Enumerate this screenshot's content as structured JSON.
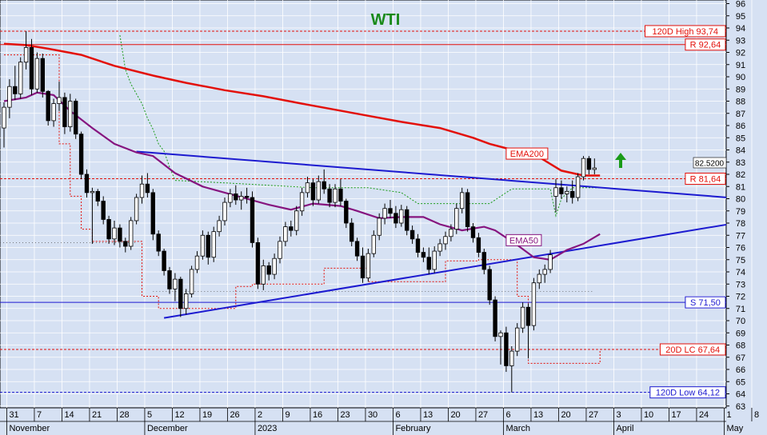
{
  "chart_data": {
    "type": "candlestick",
    "title": "WTI",
    "title_color": "#1a8a1a",
    "background": "#d6e1f3",
    "ylim": [
      62.5,
      96.8
    ],
    "yticks": [
      63,
      64,
      65,
      66,
      67,
      68,
      69,
      70,
      71,
      72,
      73,
      74,
      75,
      76,
      77,
      78,
      79,
      80,
      81,
      82,
      83,
      84,
      85,
      86,
      87,
      88,
      89,
      90,
      91,
      92,
      93,
      94,
      95,
      96
    ],
    "x_tick_labels": [
      "31",
      "7",
      "14",
      "21",
      "28",
      "5",
      "12",
      "19",
      "26",
      "2",
      "9",
      "16",
      "23",
      "30",
      "6",
      "13",
      "20",
      "27",
      "6",
      "13",
      "20",
      "27",
      "3",
      "10",
      "17",
      "24",
      "1",
      "8",
      "15"
    ],
    "x_period_labels": [
      "November",
      "December",
      "2023",
      "February",
      "March",
      "April",
      "May"
    ],
    "last_price": "82.5200",
    "candles": [
      {
        "o": 85.8,
        "h": 87.9,
        "l": 84.2,
        "c": 87.5
      },
      {
        "o": 87.5,
        "h": 89.8,
        "l": 86.6,
        "c": 89.2
      },
      {
        "o": 89.2,
        "h": 90.9,
        "l": 88.1,
        "c": 88.6
      },
      {
        "o": 88.6,
        "h": 91.6,
        "l": 88.2,
        "c": 91.2
      },
      {
        "o": 91.2,
        "h": 93.74,
        "l": 90.6,
        "c": 92.4
      },
      {
        "o": 92.4,
        "h": 93.1,
        "l": 88.5,
        "c": 89.0
      },
      {
        "o": 89.0,
        "h": 92.0,
        "l": 88.7,
        "c": 91.5
      },
      {
        "o": 91.5,
        "h": 91.9,
        "l": 88.3,
        "c": 88.8
      },
      {
        "o": 88.8,
        "h": 88.9,
        "l": 86.0,
        "c": 86.4
      },
      {
        "o": 86.4,
        "h": 88.2,
        "l": 85.9,
        "c": 87.8
      },
      {
        "o": 87.8,
        "h": 89.6,
        "l": 87.2,
        "c": 88.3
      },
      {
        "o": 88.3,
        "h": 88.7,
        "l": 85.3,
        "c": 85.9
      },
      {
        "o": 85.9,
        "h": 88.6,
        "l": 85.5,
        "c": 88.0
      },
      {
        "o": 88.0,
        "h": 88.2,
        "l": 84.9,
        "c": 85.3
      },
      {
        "o": 85.3,
        "h": 85.5,
        "l": 81.6,
        "c": 82.0
      },
      {
        "o": 82.0,
        "h": 82.4,
        "l": 80.1,
        "c": 80.5
      },
      {
        "o": 80.5,
        "h": 80.9,
        "l": 76.3,
        "c": 80.6
      },
      {
        "o": 80.6,
        "h": 80.8,
        "l": 79.4,
        "c": 79.8
      },
      {
        "o": 79.8,
        "h": 80.2,
        "l": 77.9,
        "c": 78.3
      },
      {
        "o": 78.3,
        "h": 78.6,
        "l": 76.3,
        "c": 76.7
      },
      {
        "o": 76.7,
        "h": 78.2,
        "l": 76.2,
        "c": 77.6
      },
      {
        "o": 77.6,
        "h": 77.9,
        "l": 76.0,
        "c": 76.5
      },
      {
        "o": 76.5,
        "h": 76.8,
        "l": 75.6,
        "c": 76.1
      },
      {
        "o": 76.1,
        "h": 78.5,
        "l": 75.8,
        "c": 78.2
      },
      {
        "o": 78.2,
        "h": 80.4,
        "l": 77.9,
        "c": 80.1
      },
      {
        "o": 80.1,
        "h": 81.9,
        "l": 79.6,
        "c": 81.2
      },
      {
        "o": 81.2,
        "h": 82.1,
        "l": 80.1,
        "c": 80.5
      },
      {
        "o": 80.5,
        "h": 80.8,
        "l": 76.6,
        "c": 77.1
      },
      {
        "o": 77.1,
        "h": 77.4,
        "l": 75.3,
        "c": 75.7
      },
      {
        "o": 75.7,
        "h": 75.9,
        "l": 73.7,
        "c": 74.1
      },
      {
        "o": 74.1,
        "h": 74.4,
        "l": 72.2,
        "c": 72.6
      },
      {
        "o": 72.6,
        "h": 73.9,
        "l": 71.6,
        "c": 73.4
      },
      {
        "o": 73.4,
        "h": 73.6,
        "l": 70.3,
        "c": 71.0
      },
      {
        "o": 71.0,
        "h": 72.6,
        "l": 70.5,
        "c": 72.2
      },
      {
        "o": 72.2,
        "h": 74.5,
        "l": 71.9,
        "c": 74.2
      },
      {
        "o": 74.2,
        "h": 75.7,
        "l": 73.9,
        "c": 75.3
      },
      {
        "o": 75.3,
        "h": 77.4,
        "l": 75.0,
        "c": 77.0
      },
      {
        "o": 77.0,
        "h": 77.3,
        "l": 74.6,
        "c": 75.2
      },
      {
        "o": 75.2,
        "h": 77.7,
        "l": 74.8,
        "c": 77.3
      },
      {
        "o": 77.3,
        "h": 78.6,
        "l": 76.9,
        "c": 78.2
      },
      {
        "o": 78.2,
        "h": 80.1,
        "l": 77.8,
        "c": 79.7
      },
      {
        "o": 79.7,
        "h": 80.8,
        "l": 79.3,
        "c": 80.4
      },
      {
        "o": 80.4,
        "h": 81.1,
        "l": 79.5,
        "c": 79.9
      },
      {
        "o": 79.9,
        "h": 80.6,
        "l": 79.1,
        "c": 80.2
      },
      {
        "o": 80.2,
        "h": 80.9,
        "l": 79.6,
        "c": 80.1
      },
      {
        "o": 80.1,
        "h": 80.6,
        "l": 76.0,
        "c": 76.4
      },
      {
        "o": 76.4,
        "h": 76.8,
        "l": 72.6,
        "c": 73.0
      },
      {
        "o": 73.0,
        "h": 75.0,
        "l": 72.5,
        "c": 74.5
      },
      {
        "o": 74.5,
        "h": 74.8,
        "l": 73.3,
        "c": 73.8
      },
      {
        "o": 73.8,
        "h": 75.5,
        "l": 73.4,
        "c": 75.1
      },
      {
        "o": 75.1,
        "h": 76.9,
        "l": 74.7,
        "c": 76.5
      },
      {
        "o": 76.5,
        "h": 78.1,
        "l": 76.1,
        "c": 77.7
      },
      {
        "o": 77.7,
        "h": 78.2,
        "l": 76.9,
        "c": 77.4
      },
      {
        "o": 77.4,
        "h": 79.4,
        "l": 77.0,
        "c": 79.0
      },
      {
        "o": 79.0,
        "h": 80.9,
        "l": 78.6,
        "c": 80.5
      },
      {
        "o": 80.5,
        "h": 81.8,
        "l": 80.1,
        "c": 81.3
      },
      {
        "o": 81.3,
        "h": 81.6,
        "l": 79.4,
        "c": 79.9
      },
      {
        "o": 79.9,
        "h": 81.9,
        "l": 79.6,
        "c": 81.4
      },
      {
        "o": 81.4,
        "h": 82.4,
        "l": 80.4,
        "c": 80.8
      },
      {
        "o": 80.8,
        "h": 81.2,
        "l": 79.3,
        "c": 79.7
      },
      {
        "o": 79.7,
        "h": 81.2,
        "l": 79.3,
        "c": 80.8
      },
      {
        "o": 80.8,
        "h": 81.6,
        "l": 79.4,
        "c": 79.8
      },
      {
        "o": 79.8,
        "h": 80.0,
        "l": 77.6,
        "c": 78.0
      },
      {
        "o": 78.0,
        "h": 78.4,
        "l": 76.1,
        "c": 76.5
      },
      {
        "o": 76.5,
        "h": 76.8,
        "l": 74.9,
        "c": 75.3
      },
      {
        "o": 75.3,
        "h": 76.0,
        "l": 73.1,
        "c": 73.5
      },
      {
        "o": 73.5,
        "h": 75.9,
        "l": 73.2,
        "c": 75.5
      },
      {
        "o": 75.5,
        "h": 77.4,
        "l": 75.2,
        "c": 77.0
      },
      {
        "o": 77.0,
        "h": 78.8,
        "l": 76.6,
        "c": 78.4
      },
      {
        "o": 78.4,
        "h": 79.6,
        "l": 77.9,
        "c": 79.2
      },
      {
        "o": 79.2,
        "h": 79.9,
        "l": 78.4,
        "c": 78.8
      },
      {
        "o": 78.8,
        "h": 79.4,
        "l": 77.6,
        "c": 78.0
      },
      {
        "o": 78.0,
        "h": 79.5,
        "l": 77.7,
        "c": 79.1
      },
      {
        "o": 79.1,
        "h": 79.4,
        "l": 77.0,
        "c": 77.4
      },
      {
        "o": 77.4,
        "h": 77.8,
        "l": 76.3,
        "c": 76.7
      },
      {
        "o": 76.7,
        "h": 77.1,
        "l": 75.2,
        "c": 75.6
      },
      {
        "o": 75.6,
        "h": 76.0,
        "l": 74.8,
        "c": 75.2
      },
      {
        "o": 75.2,
        "h": 76.0,
        "l": 73.8,
        "c": 74.2
      },
      {
        "o": 74.2,
        "h": 76.1,
        "l": 73.9,
        "c": 75.7
      },
      {
        "o": 75.7,
        "h": 76.7,
        "l": 75.3,
        "c": 76.3
      },
      {
        "o": 76.3,
        "h": 77.3,
        "l": 75.8,
        "c": 76.9
      },
      {
        "o": 76.9,
        "h": 77.9,
        "l": 76.5,
        "c": 77.5
      },
      {
        "o": 77.5,
        "h": 79.6,
        "l": 77.1,
        "c": 79.2
      },
      {
        "o": 79.2,
        "h": 80.9,
        "l": 78.8,
        "c": 80.5
      },
      {
        "o": 80.5,
        "h": 80.8,
        "l": 77.3,
        "c": 77.7
      },
      {
        "o": 77.7,
        "h": 78.0,
        "l": 76.4,
        "c": 76.8
      },
      {
        "o": 76.8,
        "h": 77.2,
        "l": 75.2,
        "c": 75.6
      },
      {
        "o": 75.6,
        "h": 75.9,
        "l": 73.8,
        "c": 74.2
      },
      {
        "o": 74.2,
        "h": 74.5,
        "l": 71.3,
        "c": 71.7
      },
      {
        "o": 71.7,
        "h": 72.0,
        "l": 68.3,
        "c": 68.7
      },
      {
        "o": 68.7,
        "h": 69.2,
        "l": 66.4,
        "c": 69.0
      },
      {
        "o": 69.0,
        "h": 69.5,
        "l": 65.8,
        "c": 66.3
      },
      {
        "o": 66.3,
        "h": 67.9,
        "l": 64.12,
        "c": 67.5
      },
      {
        "o": 67.5,
        "h": 69.8,
        "l": 67.1,
        "c": 69.4
      },
      {
        "o": 69.4,
        "h": 71.5,
        "l": 69.0,
        "c": 71.1
      },
      {
        "o": 71.1,
        "h": 71.4,
        "l": 66.9,
        "c": 69.6
      },
      {
        "o": 69.6,
        "h": 73.5,
        "l": 69.2,
        "c": 73.1
      },
      {
        "o": 73.1,
        "h": 74.2,
        "l": 72.6,
        "c": 73.8
      },
      {
        "o": 73.8,
        "h": 74.6,
        "l": 73.1,
        "c": 74.2
      },
      {
        "o": 74.2,
        "h": 75.8,
        "l": 73.9,
        "c": 75.4
      },
      {
        "o": 80.2,
        "h": 81.6,
        "l": 78.9,
        "c": 80.9
      },
      {
        "o": 80.9,
        "h": 81.5,
        "l": 80.0,
        "c": 80.4
      },
      {
        "o": 80.4,
        "h": 81.0,
        "l": 79.7,
        "c": 80.6
      },
      {
        "o": 80.6,
        "h": 81.5,
        "l": 79.6,
        "c": 80.1
      },
      {
        "o": 80.1,
        "h": 82.1,
        "l": 79.8,
        "c": 81.8
      },
      {
        "o": 81.8,
        "h": 83.5,
        "l": 81.5,
        "c": 83.3
      },
      {
        "o": 83.3,
        "h": 83.5,
        "l": 82.0,
        "c": 82.4
      },
      {
        "o": 82.4,
        "h": 83.3,
        "l": 82.0,
        "c": 82.52
      }
    ],
    "ema200": [
      [
        0,
        92.7
      ],
      [
        4,
        92.6
      ],
      [
        8,
        92.3
      ],
      [
        14,
        91.8
      ],
      [
        20,
        90.9
      ],
      [
        27,
        90.1
      ],
      [
        33,
        89.5
      ],
      [
        40,
        88.9
      ],
      [
        47,
        88.4
      ],
      [
        54,
        87.8
      ],
      [
        60,
        87.3
      ],
      [
        66,
        86.8
      ],
      [
        72,
        86.3
      ],
      [
        79,
        85.8
      ],
      [
        85,
        85.0
      ],
      [
        88,
        84.5
      ],
      [
        93,
        83.9
      ],
      [
        97,
        83.4
      ],
      [
        101,
        82.3
      ],
      [
        105,
        81.9
      ],
      [
        108,
        81.9
      ]
    ],
    "ema50": [
      [
        0,
        88.0
      ],
      [
        4,
        88.3
      ],
      [
        6,
        88.7
      ],
      [
        9,
        88.5
      ],
      [
        12,
        87.2
      ],
      [
        16,
        85.8
      ],
      [
        20,
        84.5
      ],
      [
        24,
        83.8
      ],
      [
        27,
        83.5
      ],
      [
        31,
        82.1
      ],
      [
        36,
        81.0
      ],
      [
        40,
        80.5
      ],
      [
        44,
        80.0
      ],
      [
        48,
        79.5
      ],
      [
        52,
        79.1
      ],
      [
        56,
        79.6
      ],
      [
        61,
        79.4
      ],
      [
        64,
        79.0
      ],
      [
        68,
        78.4
      ],
      [
        72,
        78.5
      ],
      [
        76,
        78.5
      ],
      [
        79,
        77.9
      ],
      [
        83,
        77.4
      ],
      [
        87,
        77.7
      ],
      [
        89,
        77.4
      ],
      [
        93,
        76.2
      ],
      [
        96,
        75.2
      ],
      [
        99,
        75.0
      ],
      [
        102,
        75.8
      ],
      [
        105,
        76.3
      ],
      [
        108,
        77.1
      ]
    ],
    "resistance_line": [
      [
        24,
        83.87
      ],
      [
        107,
        80.95
      ]
    ],
    "support_line": [
      [
        29,
        70.22
      ],
      [
        107,
        76.08
      ]
    ],
    "hlines": [
      {
        "label": "120D High 93,74",
        "value": 93.74,
        "style": "dashed"
      },
      {
        "label": "R 92,64",
        "value": 92.64,
        "style": "solid"
      },
      {
        "label": "R 81,64",
        "value": 81.64,
        "style": "dashed"
      },
      {
        "label": "S 71,50",
        "value": 71.5,
        "style": "solid"
      },
      {
        "label": "20D LC 67,64",
        "value": 67.64,
        "style": "dashed"
      },
      {
        "label": "120D Low 64,12",
        "value": 64.12,
        "style": "dashed"
      }
    ],
    "annotations": {
      "ema200": "EMA200",
      "ema50": "EMA50"
    },
    "colors": {
      "ema200": "#e3100a",
      "ema50": "#86157f",
      "trend": "#1c1ad0",
      "green": "#1a9b18",
      "candle": "#000000"
    }
  }
}
